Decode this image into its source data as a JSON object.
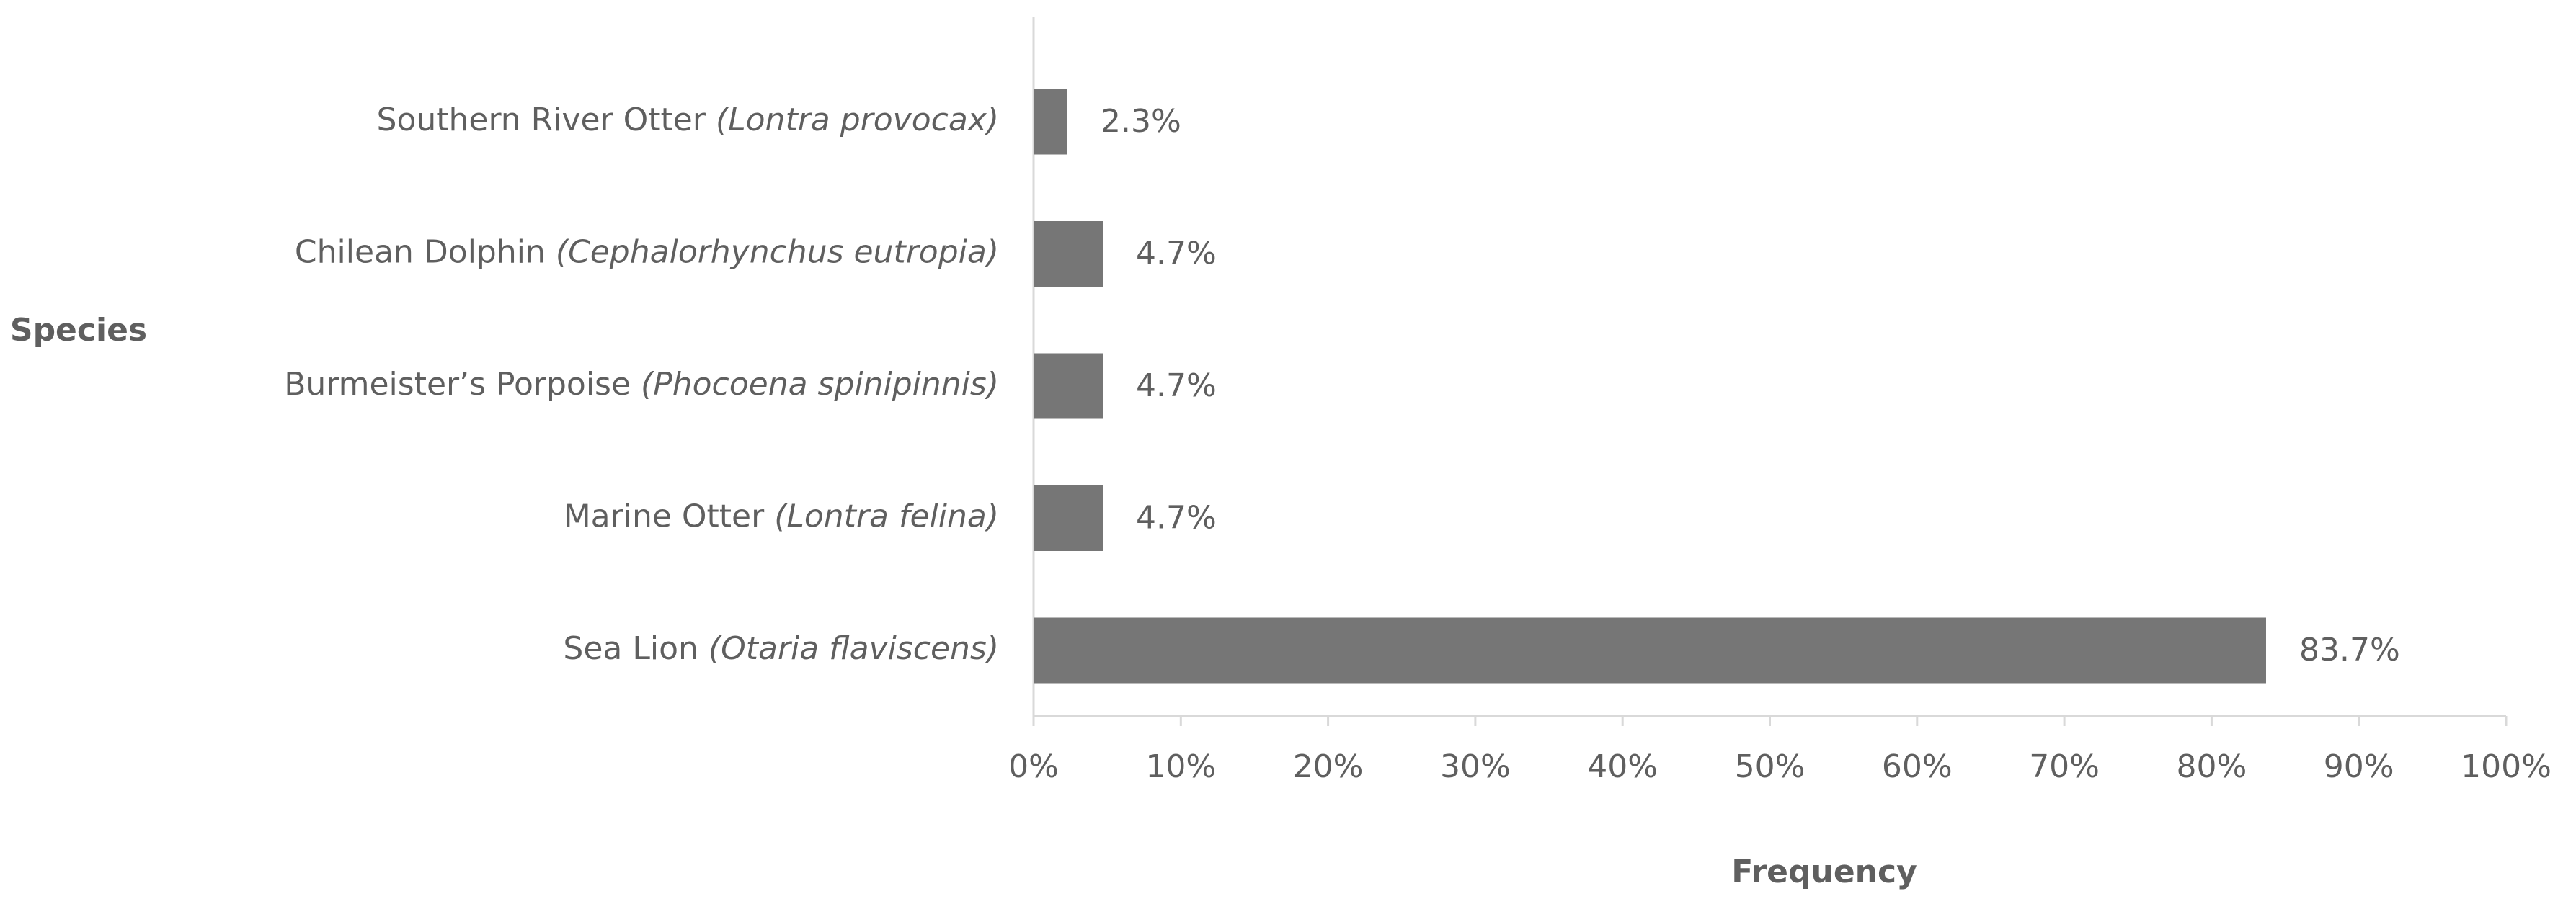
{
  "chart_data": {
    "type": "bar",
    "orientation": "horizontal",
    "y_label": "Species",
    "x_label": "Frequency",
    "categories": [
      "Southern River Otter (Lontra provocax)",
      "Chilean Dolphin (Cephalorhynchus eutropia)",
      "Burmeister’s Porpoise (Phocoena spinipinnis)",
      "Marine Otter (Lontra felina)",
      "Sea Lion (Otaria flaviscens)"
    ],
    "values": [
      2.3,
      4.7,
      4.7,
      4.7,
      83.7
    ],
    "value_labels": [
      "2.3%",
      "4.7%",
      "4.7%",
      "4.7%",
      "83.7%"
    ],
    "color": "#767676",
    "xlim": [
      0,
      100
    ],
    "xticks": [
      {
        "value": 0,
        "label": "0%"
      },
      {
        "value": 10,
        "label": "10%"
      },
      {
        "value": 20,
        "label": "20%"
      },
      {
        "value": 30,
        "label": "30%"
      },
      {
        "value": 40,
        "label": "40%"
      },
      {
        "value": 50,
        "label": "50%"
      },
      {
        "value": 60,
        "label": "60%"
      },
      {
        "value": 70,
        "label": "70%"
      },
      {
        "value": 80,
        "label": "80%"
      },
      {
        "value": 90,
        "label": "90%"
      },
      {
        "value": 100,
        "label": "100%"
      }
    ],
    "grid": false
  }
}
